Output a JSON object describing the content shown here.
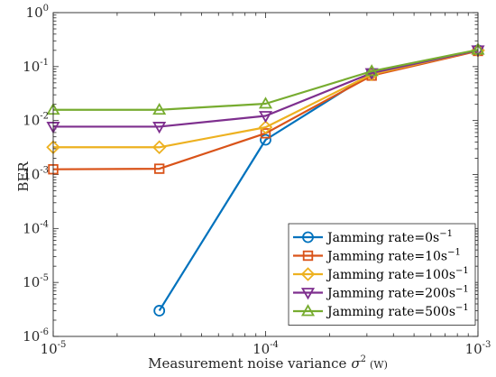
{
  "chart_data": {
    "type": "line",
    "xscale": "log",
    "yscale": "log",
    "xlim": [
      1e-05,
      0.001
    ],
    "ylim": [
      1e-06,
      1
    ],
    "grid": false,
    "legend_position": "bottom-right",
    "xlabel_text": "Measurement noise variance",
    "xlabel_symbol": "σ",
    "xlabel_symbol_sup": "2",
    "xlabel_unit": "(W)",
    "ylabel": "BER",
    "x_ticks": [
      {
        "value": 1e-05,
        "base": "10",
        "exp": "-5"
      },
      {
        "value": 0.0001,
        "base": "10",
        "exp": "-4"
      },
      {
        "value": 0.001,
        "base": "10",
        "exp": "-3"
      }
    ],
    "y_ticks": [
      {
        "value": 1e-06,
        "base": "10",
        "exp": "-6"
      },
      {
        "value": 1e-05,
        "base": "10",
        "exp": "-5"
      },
      {
        "value": 0.0001,
        "base": "10",
        "exp": "-4"
      },
      {
        "value": 0.001,
        "base": "10",
        "exp": "-3"
      },
      {
        "value": 0.01,
        "base": "10",
        "exp": "-2"
      },
      {
        "value": 0.1,
        "base": "10",
        "exp": "-1"
      },
      {
        "value": 1,
        "base": "10",
        "exp": "0"
      }
    ],
    "series": [
      {
        "name": "Jamming rate=0s",
        "legend_sup": "−1",
        "color": "#0072BD",
        "marker": "circle",
        "points": [
          {
            "x": 3.16e-05,
            "y": 3e-06
          },
          {
            "x": 0.0001,
            "y": 0.0044
          },
          {
            "x": 0.000316,
            "y": 0.075
          },
          {
            "x": 0.001,
            "y": 0.2
          }
        ]
      },
      {
        "name": "Jamming rate=10s",
        "legend_sup": "−1",
        "color": "#D95319",
        "marker": "square",
        "points": [
          {
            "x": 1e-05,
            "y": 0.00125
          },
          {
            "x": 3.16e-05,
            "y": 0.00128
          },
          {
            "x": 0.0001,
            "y": 0.0058
          },
          {
            "x": 0.000316,
            "y": 0.068
          },
          {
            "x": 0.001,
            "y": 0.195
          }
        ]
      },
      {
        "name": "Jamming rate=100s",
        "legend_sup": "−1",
        "color": "#EDB120",
        "marker": "diamond",
        "points": [
          {
            "x": 1e-05,
            "y": 0.0032
          },
          {
            "x": 3.16e-05,
            "y": 0.0032
          },
          {
            "x": 0.0001,
            "y": 0.0075
          },
          {
            "x": 0.000316,
            "y": 0.072
          },
          {
            "x": 0.001,
            "y": 0.2
          }
        ]
      },
      {
        "name": "Jamming rate=200s",
        "legend_sup": "−1",
        "color": "#7E2F8E",
        "marker": "triangle-down",
        "points": [
          {
            "x": 1e-05,
            "y": 0.0077
          },
          {
            "x": 3.16e-05,
            "y": 0.0077
          },
          {
            "x": 0.0001,
            "y": 0.0122
          },
          {
            "x": 0.000316,
            "y": 0.076
          },
          {
            "x": 0.001,
            "y": 0.2
          }
        ]
      },
      {
        "name": "Jamming rate=500s",
        "legend_sup": "−1",
        "color": "#77AC30",
        "marker": "triangle-up",
        "points": [
          {
            "x": 1e-05,
            "y": 0.0158
          },
          {
            "x": 3.16e-05,
            "y": 0.0158
          },
          {
            "x": 0.0001,
            "y": 0.0205
          },
          {
            "x": 0.000316,
            "y": 0.082
          },
          {
            "x": 0.001,
            "y": 0.205
          }
        ]
      }
    ]
  }
}
